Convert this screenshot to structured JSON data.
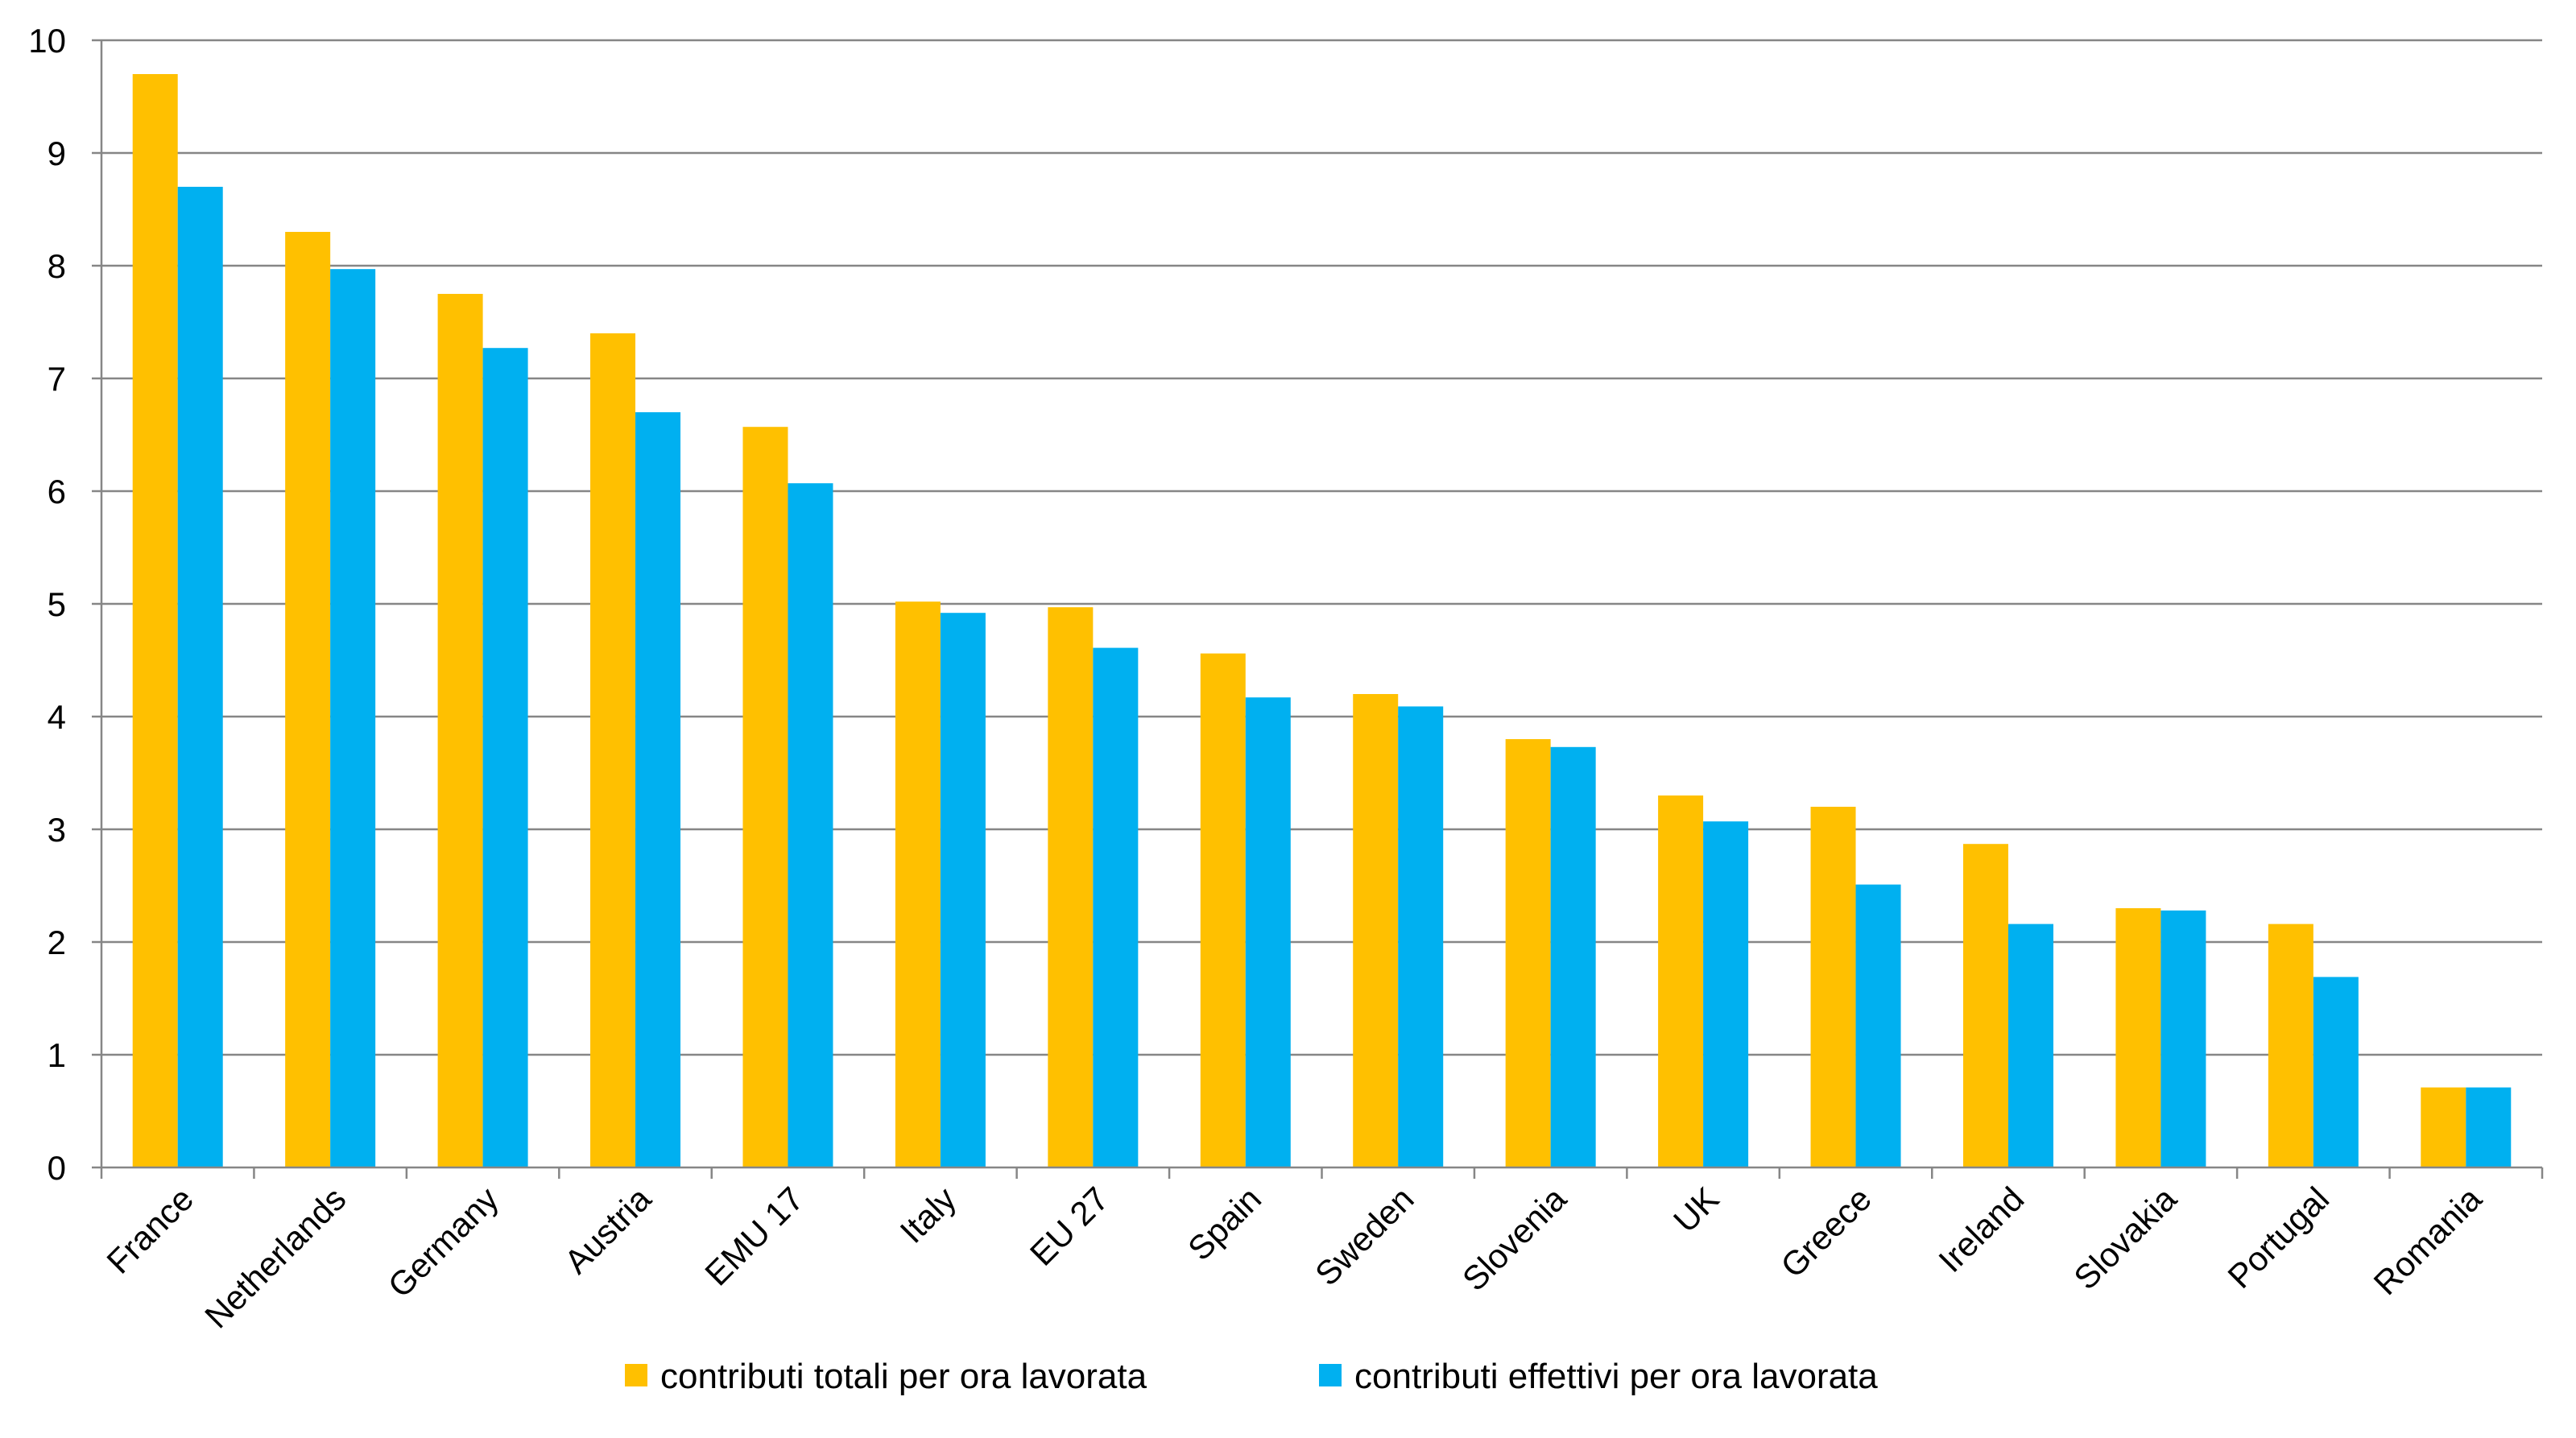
{
  "chart_data": {
    "type": "bar",
    "title": "",
    "xlabel": "",
    "ylabel": "",
    "ylim": [
      0,
      10
    ],
    "yticks": [
      0,
      1,
      2,
      3,
      4,
      5,
      6,
      7,
      8,
      9,
      10
    ],
    "grid": true,
    "legend_position": "bottom",
    "categories": [
      "France",
      "Netherlands",
      "Germany",
      "Austria",
      "EMU 17",
      "Italy",
      "EU 27",
      "Spain",
      "Sweden",
      "Slovenia",
      "UK",
      "Greece",
      "Ireland",
      "Slovakia",
      "Portugal",
      "Romania"
    ],
    "series": [
      {
        "name": "contributi totali per ora lavorata",
        "color": "#FFC000",
        "values": [
          9.7,
          8.3,
          7.75,
          7.4,
          6.57,
          5.02,
          4.97,
          4.56,
          4.2,
          3.8,
          3.3,
          3.2,
          2.87,
          2.3,
          2.16,
          0.71
        ]
      },
      {
        "name": "contributi effettivi per ora lavorata",
        "color": "#00B0F0",
        "values": [
          8.7,
          7.97,
          7.27,
          6.7,
          6.07,
          4.92,
          4.61,
          4.17,
          4.09,
          3.73,
          3.07,
          2.51,
          2.16,
          2.28,
          1.69,
          0.71
        ]
      }
    ]
  }
}
